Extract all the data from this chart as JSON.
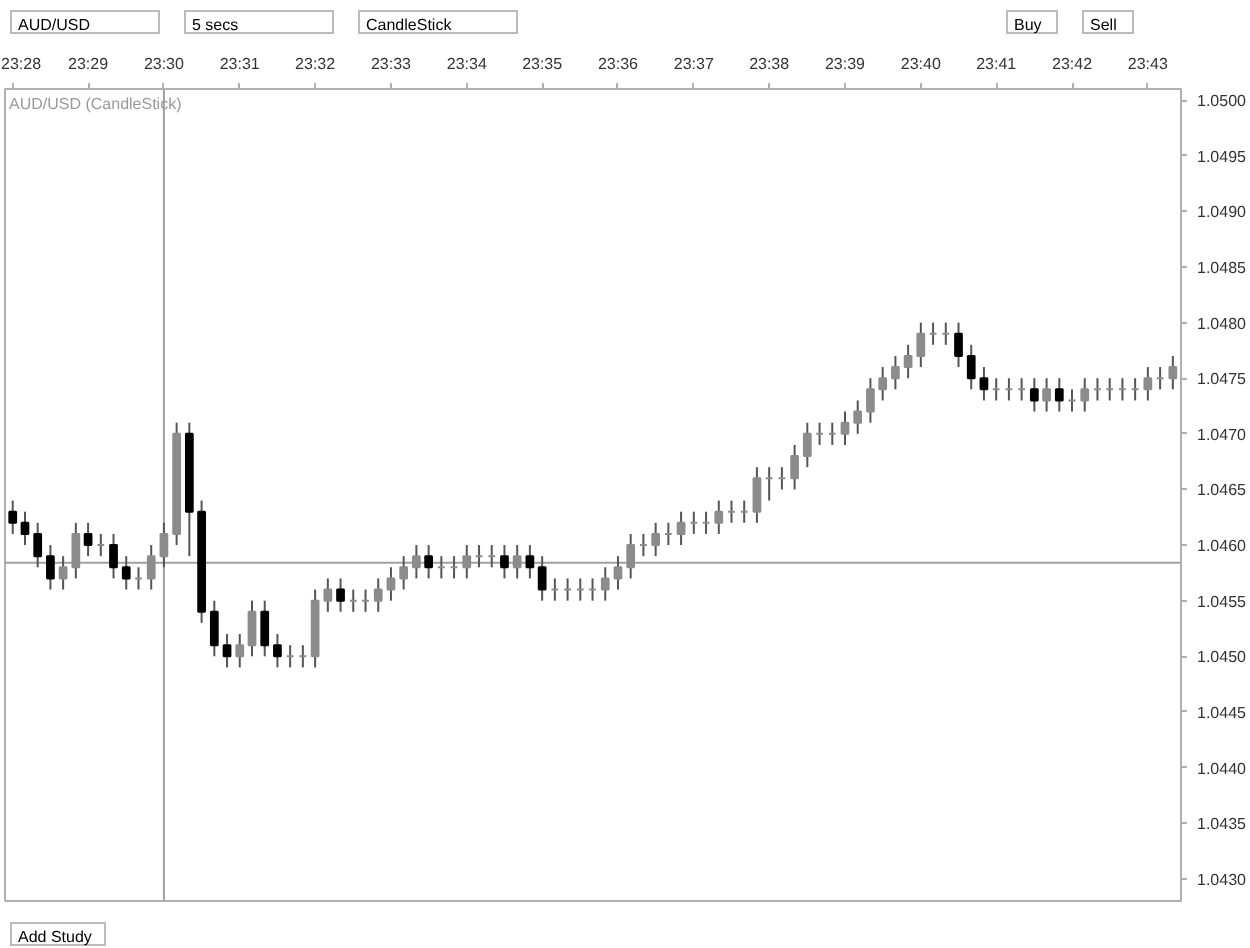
{
  "chart_data": {
    "type": "candlestick",
    "title": "AUD/USD (CandleStick)",
    "annotations": [
      "AUD/USD",
      "5 secs",
      "CandleStick",
      "Buy",
      "Sell",
      "Add Study"
    ],
    "x": [
      23.4667,
      23.4694,
      23.4722,
      23.475,
      23.4778,
      23.4806,
      23.4833,
      23.4861,
      23.4889,
      23.4917,
      23.4944,
      23.4972,
      23.5,
      23.5028,
      23.5056,
      23.5083,
      23.5111,
      23.5139,
      23.5167,
      23.5194,
      23.5222,
      23.525,
      23.5278,
      23.5306,
      23.5333,
      23.5361,
      23.5389,
      23.5417,
      23.5444,
      23.5472,
      23.55,
      23.5528,
      23.5556,
      23.5583,
      23.5611,
      23.5639,
      23.5667,
      23.5694,
      23.5722,
      23.575,
      23.5778,
      23.5806,
      23.5833,
      23.5861,
      23.5889,
      23.5917,
      23.5944,
      23.5972,
      23.6,
      23.6028,
      23.6056,
      23.6083,
      23.6111,
      23.6139,
      23.6167,
      23.6194,
      23.6222,
      23.625,
      23.6278,
      23.6306,
      23.6333,
      23.6361,
      23.6389,
      23.6417,
      23.6444,
      23.6472,
      23.65,
      23.6528,
      23.6556,
      23.6583,
      23.6611,
      23.6639,
      23.6667,
      23.6694,
      23.6722,
      23.675,
      23.6778,
      23.6806,
      23.6833,
      23.6861,
      23.6889,
      23.6917,
      23.6944,
      23.6972,
      23.7,
      23.7028,
      23.7056,
      23.7083,
      23.7111,
      23.7139,
      23.7167,
      23.7194,
      23.7222
    ],
    "ohlc": [
      [
        1.0463,
        1.0464,
        1.0461,
        1.0462
      ],
      [
        1.0462,
        1.0463,
        1.046,
        1.0461
      ],
      [
        1.0461,
        1.0462,
        1.0458,
        1.0459
      ],
      [
        1.0459,
        1.046,
        1.0456,
        1.0457
      ],
      [
        1.0457,
        1.0459,
        1.0456,
        1.0458
      ],
      [
        1.0458,
        1.0462,
        1.0457,
        1.0461
      ],
      [
        1.0461,
        1.0462,
        1.0459,
        1.046
      ],
      [
        1.046,
        1.0461,
        1.0459,
        1.046
      ],
      [
        1.046,
        1.0461,
        1.0457,
        1.0458
      ],
      [
        1.0458,
        1.0459,
        1.0456,
        1.0457
      ],
      [
        1.0457,
        1.0458,
        1.0456,
        1.0457
      ],
      [
        1.0457,
        1.046,
        1.0456,
        1.0459
      ],
      [
        1.0459,
        1.0462,
        1.0458,
        1.0461
      ],
      [
        1.0461,
        1.0471,
        1.046,
        1.047
      ],
      [
        1.047,
        1.0471,
        1.0459,
        1.0463
      ],
      [
        1.0463,
        1.0464,
        1.0453,
        1.0454
      ],
      [
        1.0454,
        1.0455,
        1.045,
        1.0451
      ],
      [
        1.0451,
        1.0452,
        1.0449,
        1.045
      ],
      [
        1.045,
        1.0452,
        1.0449,
        1.0451
      ],
      [
        1.0451,
        1.0455,
        1.045,
        1.0454
      ],
      [
        1.0454,
        1.0455,
        1.045,
        1.0451
      ],
      [
        1.0451,
        1.0452,
        1.0449,
        1.045
      ],
      [
        1.045,
        1.0451,
        1.0449,
        1.045
      ],
      [
        1.045,
        1.0451,
        1.0449,
        1.045
      ],
      [
        1.045,
        1.0456,
        1.0449,
        1.0455
      ],
      [
        1.0455,
        1.0457,
        1.0454,
        1.0456
      ],
      [
        1.0456,
        1.0457,
        1.0454,
        1.0455
      ],
      [
        1.0455,
        1.0456,
        1.0454,
        1.0455
      ],
      [
        1.0455,
        1.0456,
        1.0454,
        1.0455
      ],
      [
        1.0455,
        1.0457,
        1.0454,
        1.0456
      ],
      [
        1.0456,
        1.0458,
        1.0455,
        1.0457
      ],
      [
        1.0457,
        1.0459,
        1.0456,
        1.0458
      ],
      [
        1.0458,
        1.046,
        1.0457,
        1.0459
      ],
      [
        1.0459,
        1.046,
        1.0457,
        1.0458
      ],
      [
        1.0458,
        1.0459,
        1.0457,
        1.0458
      ],
      [
        1.0458,
        1.0459,
        1.0457,
        1.0458
      ],
      [
        1.0458,
        1.046,
        1.0457,
        1.0459
      ],
      [
        1.0459,
        1.046,
        1.0458,
        1.0459
      ],
      [
        1.0459,
        1.046,
        1.0458,
        1.0459
      ],
      [
        1.0459,
        1.046,
        1.0457,
        1.0458
      ],
      [
        1.0458,
        1.046,
        1.0457,
        1.0459
      ],
      [
        1.0459,
        1.046,
        1.0457,
        1.0458
      ],
      [
        1.0458,
        1.0459,
        1.0455,
        1.0456
      ],
      [
        1.0456,
        1.0457,
        1.0455,
        1.0456
      ],
      [
        1.0456,
        1.0457,
        1.0455,
        1.0456
      ],
      [
        1.0456,
        1.0457,
        1.0455,
        1.0456
      ],
      [
        1.0456,
        1.0457,
        1.0455,
        1.0456
      ],
      [
        1.0456,
        1.0458,
        1.0455,
        1.0457
      ],
      [
        1.0457,
        1.0459,
        1.0456,
        1.0458
      ],
      [
        1.0458,
        1.0461,
        1.0457,
        1.046
      ],
      [
        1.046,
        1.0461,
        1.0459,
        1.046
      ],
      [
        1.046,
        1.0462,
        1.0459,
        1.0461
      ],
      [
        1.0461,
        1.0462,
        1.046,
        1.0461
      ],
      [
        1.0461,
        1.0463,
        1.046,
        1.0462
      ],
      [
        1.0462,
        1.0463,
        1.0461,
        1.0462
      ],
      [
        1.0462,
        1.0463,
        1.0461,
        1.0462
      ],
      [
        1.0462,
        1.0464,
        1.0461,
        1.0463
      ],
      [
        1.0463,
        1.0464,
        1.0462,
        1.0463
      ],
      [
        1.0463,
        1.0464,
        1.0462,
        1.0463
      ],
      [
        1.0463,
        1.0467,
        1.0462,
        1.0466
      ],
      [
        1.0466,
        1.0467,
        1.0464,
        1.0466
      ],
      [
        1.0466,
        1.0467,
        1.0465,
        1.0466
      ],
      [
        1.0466,
        1.0469,
        1.0465,
        1.0468
      ],
      [
        1.0468,
        1.0471,
        1.0467,
        1.047
      ],
      [
        1.047,
        1.0471,
        1.0469,
        1.047
      ],
      [
        1.047,
        1.0471,
        1.0469,
        1.047
      ],
      [
        1.047,
        1.0472,
        1.0469,
        1.0471
      ],
      [
        1.0471,
        1.0473,
        1.047,
        1.0472
      ],
      [
        1.0472,
        1.0475,
        1.0471,
        1.0474
      ],
      [
        1.0474,
        1.0476,
        1.0473,
        1.0475
      ],
      [
        1.0475,
        1.0477,
        1.0474,
        1.0476
      ],
      [
        1.0476,
        1.0478,
        1.0475,
        1.0477
      ],
      [
        1.0477,
        1.048,
        1.0476,
        1.0479
      ],
      [
        1.0479,
        1.048,
        1.0478,
        1.0479
      ],
      [
        1.0479,
        1.048,
        1.0478,
        1.0479
      ],
      [
        1.0479,
        1.048,
        1.0476,
        1.0477
      ],
      [
        1.0477,
        1.0478,
        1.0474,
        1.0475
      ],
      [
        1.0475,
        1.0476,
        1.0473,
        1.0474
      ],
      [
        1.0474,
        1.0475,
        1.0473,
        1.0474
      ],
      [
        1.0474,
        1.0475,
        1.0473,
        1.0474
      ],
      [
        1.0474,
        1.0475,
        1.0473,
        1.0474
      ],
      [
        1.0474,
        1.0475,
        1.0472,
        1.0473
      ],
      [
        1.0473,
        1.0475,
        1.0472,
        1.0474
      ],
      [
        1.0474,
        1.0475,
        1.0472,
        1.0473
      ],
      [
        1.0473,
        1.0474,
        1.0472,
        1.0473
      ],
      [
        1.0473,
        1.0475,
        1.0472,
        1.0474
      ],
      [
        1.0474,
        1.0475,
        1.0473,
        1.0474
      ],
      [
        1.0474,
        1.0475,
        1.0473,
        1.0474
      ],
      [
        1.0474,
        1.0475,
        1.0473,
        1.0474
      ],
      [
        1.0474,
        1.0475,
        1.0473,
        1.0474
      ],
      [
        1.0474,
        1.0476,
        1.0473,
        1.0475
      ],
      [
        1.0475,
        1.0476,
        1.0474,
        1.0475
      ],
      [
        1.0475,
        1.0477,
        1.0474,
        1.0476
      ]
    ],
    "xlim": [
      23.465,
      23.724
    ],
    "xticks": [
      {
        "value": 23.4667,
        "label": "23:28"
      },
      {
        "value": 23.4833,
        "label": "23:29"
      },
      {
        "value": 23.5,
        "label": "23:30"
      },
      {
        "value": 23.5167,
        "label": "23:31"
      },
      {
        "value": 23.5333,
        "label": "23:32"
      },
      {
        "value": 23.55,
        "label": "23:33"
      },
      {
        "value": 23.5667,
        "label": "23:34"
      },
      {
        "value": 23.5833,
        "label": "23:35"
      },
      {
        "value": 23.6,
        "label": "23:36"
      },
      {
        "value": 23.6167,
        "label": "23:37"
      },
      {
        "value": 23.6333,
        "label": "23:38"
      },
      {
        "value": 23.65,
        "label": "23:39"
      },
      {
        "value": 23.6667,
        "label": "23:40"
      },
      {
        "value": 23.6833,
        "label": "23:41"
      },
      {
        "value": 23.7,
        "label": "23:42"
      },
      {
        "value": 23.7167,
        "label": "23:43"
      }
    ],
    "ylim": [
      1.0428,
      1.0501
    ],
    "yticks": [
      {
        "value": 1.043,
        "label": "1.0430"
      },
      {
        "value": 1.0435,
        "label": "1.0435"
      },
      {
        "value": 1.044,
        "label": "1.0440"
      },
      {
        "value": 1.0445,
        "label": "1.0445"
      },
      {
        "value": 1.045,
        "label": "1.0450"
      },
      {
        "value": 1.0455,
        "label": "1.0455"
      },
      {
        "value": 1.046,
        "label": "1.0460"
      },
      {
        "value": 1.0465,
        "label": "1.0465"
      },
      {
        "value": 1.047,
        "label": "1.0470"
      },
      {
        "value": 1.0475,
        "label": "1.0475"
      },
      {
        "value": 1.048,
        "label": "1.0480"
      },
      {
        "value": 1.0485,
        "label": "1.0485"
      },
      {
        "value": 1.049,
        "label": "1.0490"
      },
      {
        "value": 1.0495,
        "label": "1.0495"
      },
      {
        "value": 1.05,
        "label": "1.0500"
      }
    ],
    "ref_lines": [
      {
        "axis": "x",
        "value": 23.5,
        "color": "#a0a0a0"
      },
      {
        "axis": "y",
        "value": 1.04584,
        "color": "#a0a0a0"
      }
    ]
  }
}
